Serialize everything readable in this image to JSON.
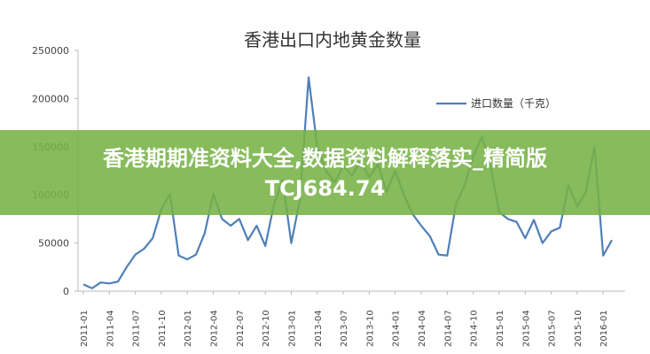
{
  "chart_data": {
    "type": "line",
    "title": "香港出口内地黄金数量",
    "xlabel": "",
    "ylabel": "",
    "ylim": [
      0,
      250000
    ],
    "yticks": [
      "0",
      "50000",
      "100000",
      "150000",
      "200000",
      "250000"
    ],
    "xticks": [
      "2011-01",
      "2011-04",
      "2011-07",
      "2011-10",
      "2012-01",
      "2012-04",
      "2012-07",
      "2012-10",
      "2013-01",
      "2013-04",
      "2013-07",
      "2013-10",
      "2014-01",
      "2014-04",
      "2014-07",
      "2014-10",
      "2015-01",
      "2015-04",
      "2015-07",
      "2015-10",
      "2016-01"
    ],
    "legend_position": "top-right",
    "grid": false,
    "series": [
      {
        "name": "进口数量（千克）",
        "color": "#4f7fb8",
        "values": [
          7000,
          3000,
          9000,
          8000,
          10000,
          25000,
          38000,
          44000,
          55000,
          85000,
          101000,
          37000,
          33000,
          38000,
          60000,
          101000,
          75000,
          68000,
          75000,
          53000,
          68000,
          47000,
          90000,
          115000,
          50000,
          95000,
          222000,
          150000,
          125000,
          113000,
          130000,
          120000,
          135000,
          118000,
          132000,
          103000,
          125000,
          100000,
          80000,
          68000,
          57000,
          38000,
          37000,
          90000,
          110000,
          140000,
          160000,
          130000,
          82000,
          75000,
          72000,
          55000,
          74000,
          50000,
          62000,
          66000,
          110000,
          88000,
          103000,
          150000,
          37000,
          53000
        ]
      }
    ]
  },
  "banner": {
    "line1": "香港期期准资料大全,数据资料解释落实_精简版",
    "line2": "TCJ684.74"
  }
}
